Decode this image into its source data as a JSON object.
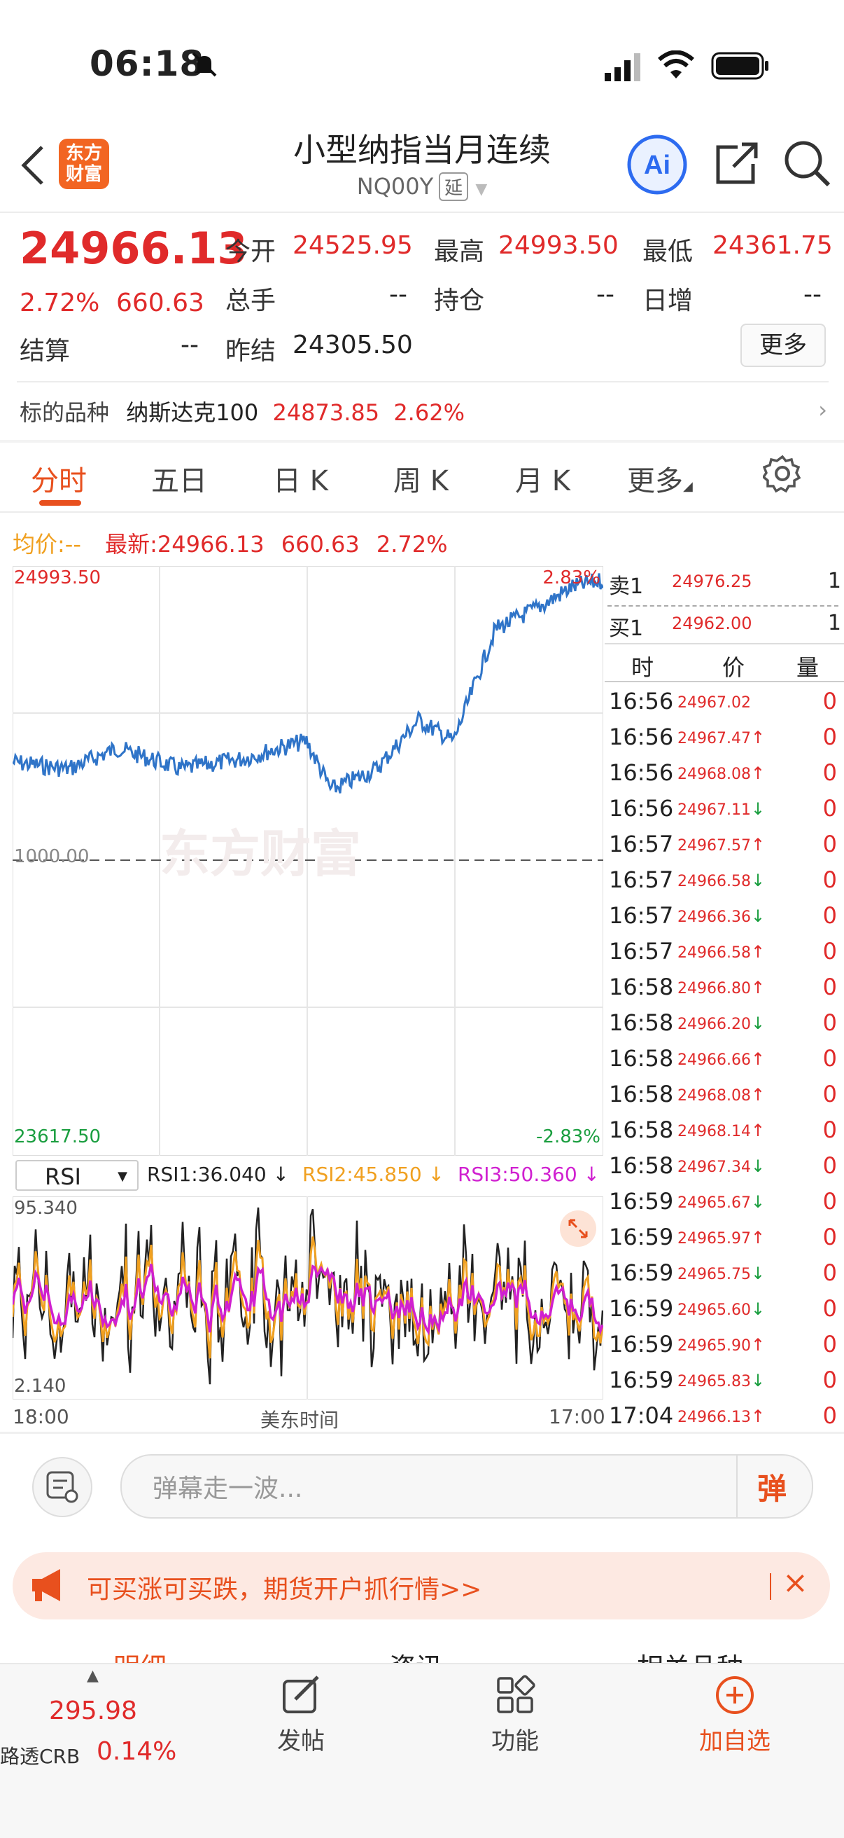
{
  "status": {
    "time": "06:18"
  },
  "header": {
    "logo_text": "东方财富",
    "title": "小型纳指当月连续",
    "code": "NQ00Y",
    "badge": "延"
  },
  "quote": {
    "price": "24966.13",
    "pct": "2.72%",
    "change": "660.63",
    "open_label": "今开",
    "open": "24525.95",
    "high_label": "最高",
    "high": "24993.50",
    "low_label": "最低",
    "low": "24361.75",
    "vol_label": "总手",
    "vol": "--",
    "oi_label": "持仓",
    "oi": "--",
    "daily_label": "日增",
    "daily": "--",
    "settle_label": "结算",
    "settle": "--",
    "prev_label": "昨结",
    "prev": "24305.50",
    "more_label": "更多"
  },
  "underlying": {
    "label": "标的品种",
    "name": "纳斯达克100",
    "price": "24873.85",
    "pct": "2.62%"
  },
  "tabs": [
    "分时",
    "五日",
    "日 K",
    "周 K",
    "月 K",
    "更多"
  ],
  "legend": {
    "avg_label": "均价:",
    "avg_val": "--",
    "latest_label": "最新:",
    "latest_price": "24966.13",
    "latest_change": "660.63",
    "latest_pct": "2.72%"
  },
  "chart": {
    "y_top": "24993.50",
    "y_bottom": "23617.50",
    "pct_top": "2.83%",
    "pct_bottom": "-2.83%",
    "mid_label": "1000.00",
    "watermark": "东方财富",
    "rsi_select": "RSI",
    "rsi1": "RSI1:36.040 ↓",
    "rsi2": "RSI2:45.850 ↓",
    "rsi3": "RSI3:50.360 ↓",
    "rsi_top": "95.340",
    "rsi_bottom": "2.140",
    "x_start": "18:00",
    "x_mid": "美东时间",
    "x_end": "17:00"
  },
  "chart_data": {
    "type": "line",
    "series": [],
    "ylim": [
      23617.5,
      24993.5
    ]
  },
  "orderbook": {
    "sell_label": "卖1",
    "sell_price": "24976.25",
    "sell_qty": "1",
    "buy_label": "买1",
    "buy_price": "24962.00",
    "buy_qty": "1",
    "col_time": "时",
    "col_price": "价",
    "col_vol": "量"
  },
  "trades": [
    {
      "time": "16:56",
      "price": "24967.02",
      "dir": "",
      "vol": "0"
    },
    {
      "time": "16:56",
      "price": "24967.47",
      "dir": "↑",
      "vol": "0"
    },
    {
      "time": "16:56",
      "price": "24968.08",
      "dir": "↑",
      "vol": "0"
    },
    {
      "time": "16:56",
      "price": "24967.11",
      "dir": "↓",
      "vol": "0"
    },
    {
      "time": "16:57",
      "price": "24967.57",
      "dir": "↑",
      "vol": "0"
    },
    {
      "time": "16:57",
      "price": "24966.58",
      "dir": "↓",
      "vol": "0"
    },
    {
      "time": "16:57",
      "price": "24966.36",
      "dir": "↓",
      "vol": "0"
    },
    {
      "time": "16:57",
      "price": "24966.58",
      "dir": "↑",
      "vol": "0"
    },
    {
      "time": "16:58",
      "price": "24966.80",
      "dir": "↑",
      "vol": "0"
    },
    {
      "time": "16:58",
      "price": "24966.20",
      "dir": "↓",
      "vol": "0"
    },
    {
      "time": "16:58",
      "price": "24966.66",
      "dir": "↑",
      "vol": "0"
    },
    {
      "time": "16:58",
      "price": "24968.08",
      "dir": "↑",
      "vol": "0"
    },
    {
      "time": "16:58",
      "price": "24968.14",
      "dir": "↑",
      "vol": "0"
    },
    {
      "time": "16:58",
      "price": "24967.34",
      "dir": "↓",
      "vol": "0"
    },
    {
      "time": "16:59",
      "price": "24965.67",
      "dir": "↓",
      "vol": "0"
    },
    {
      "time": "16:59",
      "price": "24965.97",
      "dir": "↑",
      "vol": "0"
    },
    {
      "time": "16:59",
      "price": "24965.75",
      "dir": "↓",
      "vol": "0"
    },
    {
      "time": "16:59",
      "price": "24965.60",
      "dir": "↓",
      "vol": "0"
    },
    {
      "time": "16:59",
      "price": "24965.90",
      "dir": "↑",
      "vol": "0"
    },
    {
      "time": "16:59",
      "price": "24965.83",
      "dir": "↓",
      "vol": "0"
    },
    {
      "time": "17:04",
      "price": "24966.13",
      "dir": "↑",
      "vol": "0"
    }
  ],
  "comment": {
    "placeholder": "弹幕走一波...",
    "danmu_label": "弹"
  },
  "banner": {
    "text": "可买涨可买跌，期货开户抓行情>>"
  },
  "bottom": {
    "partial_tabs": [
      "明细",
      "资讯",
      "相关品种"
    ],
    "crb_price": "295.98",
    "crb_label": "路透CRB",
    "crb_pct": "0.14%",
    "post_label": "发帖",
    "func_label": "功能",
    "watch_label": "加自选"
  }
}
